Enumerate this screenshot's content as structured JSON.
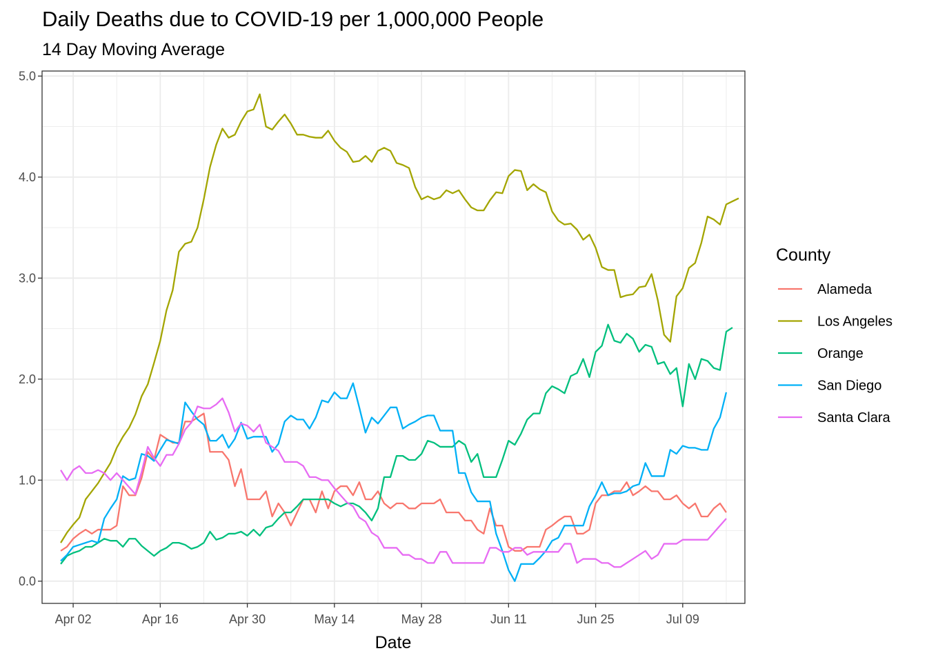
{
  "chart_data": {
    "type": "line",
    "title": "Daily Deaths due to COVID-19 per 1,000,000 People",
    "subtitle": "14 Day Moving Average",
    "xlabel": "Date",
    "ylabel": "",
    "x_start": "2020-03-31",
    "x_step_days": 1,
    "xlim": [
      "2020-03-28",
      "2020-07-19"
    ],
    "x_ticks": [
      {
        "date": "2020-04-02",
        "label": "Apr 02"
      },
      {
        "date": "2020-04-16",
        "label": "Apr 16"
      },
      {
        "date": "2020-04-30",
        "label": "Apr 30"
      },
      {
        "date": "2020-05-14",
        "label": "May 14"
      },
      {
        "date": "2020-05-28",
        "label": "May 28"
      },
      {
        "date": "2020-06-11",
        "label": "Jun 11"
      },
      {
        "date": "2020-06-25",
        "label": "Jun 25"
      },
      {
        "date": "2020-07-09",
        "label": "Jul 09"
      }
    ],
    "ylim": [
      -0.22,
      5.05
    ],
    "y_ticks": [
      {
        "value": 0,
        "label": "0.0"
      },
      {
        "value": 1,
        "label": "1.0"
      },
      {
        "value": 2,
        "label": "2.0"
      },
      {
        "value": 3,
        "label": "3.0"
      },
      {
        "value": 4,
        "label": "4.0"
      },
      {
        "value": 5,
        "label": "5.0"
      }
    ],
    "grid": true,
    "legend": {
      "title": "County",
      "position": "right"
    },
    "series": [
      {
        "name": "Alameda",
        "color": "#F8766D",
        "values": [
          0.3,
          0.34,
          0.42,
          0.47,
          0.51,
          0.47,
          0.51,
          0.51,
          0.51,
          0.55,
          0.94,
          0.85,
          0.85,
          1.02,
          1.28,
          1.2,
          1.45,
          1.41,
          1.37,
          1.37,
          1.58,
          1.58,
          1.62,
          1.66,
          1.28,
          1.28,
          1.28,
          1.2,
          0.94,
          1.11,
          0.81,
          0.81,
          0.81,
          0.89,
          0.64,
          0.77,
          0.68,
          0.55,
          0.68,
          0.81,
          0.81,
          0.68,
          0.89,
          0.72,
          0.89,
          0.94,
          0.94,
          0.85,
          0.98,
          0.81,
          0.81,
          0.89,
          0.77,
          0.72,
          0.77,
          0.77,
          0.72,
          0.72,
          0.77,
          0.77,
          0.77,
          0.81,
          0.68,
          0.68,
          0.68,
          0.6,
          0.6,
          0.51,
          0.47,
          0.72,
          0.55,
          0.55,
          0.34,
          0.3,
          0.3,
          0.34,
          0.34,
          0.34,
          0.51,
          0.55,
          0.6,
          0.64,
          0.64,
          0.47,
          0.47,
          0.51,
          0.77,
          0.85,
          0.85,
          0.89,
          0.89,
          0.98,
          0.85,
          0.89,
          0.94,
          0.89,
          0.89,
          0.81,
          0.81,
          0.85,
          0.77,
          0.72,
          0.77,
          0.64,
          0.64,
          0.72,
          0.77,
          0.68
        ]
      },
      {
        "name": "Los Angeles",
        "color": "#A3A500",
        "values": [
          0.38,
          0.48,
          0.56,
          0.63,
          0.81,
          0.89,
          0.97,
          1.07,
          1.17,
          1.32,
          1.43,
          1.52,
          1.65,
          1.83,
          1.95,
          2.16,
          2.38,
          2.68,
          2.88,
          3.26,
          3.34,
          3.36,
          3.5,
          3.78,
          4.1,
          4.32,
          4.48,
          4.39,
          4.42,
          4.55,
          4.65,
          4.67,
          4.82,
          4.5,
          4.47,
          4.55,
          4.62,
          4.53,
          4.42,
          4.42,
          4.4,
          4.39,
          4.39,
          4.46,
          4.36,
          4.29,
          4.25,
          4.15,
          4.16,
          4.21,
          4.15,
          4.26,
          4.29,
          4.26,
          4.14,
          4.12,
          4.09,
          3.9,
          3.78,
          3.81,
          3.78,
          3.8,
          3.87,
          3.84,
          3.87,
          3.78,
          3.7,
          3.67,
          3.67,
          3.77,
          3.85,
          3.84,
          4.01,
          4.07,
          4.06,
          3.87,
          3.93,
          3.88,
          3.85,
          3.66,
          3.57,
          3.53,
          3.54,
          3.48,
          3.38,
          3.43,
          3.3,
          3.11,
          3.08,
          3.08,
          2.81,
          2.83,
          2.84,
          2.91,
          2.92,
          3.04,
          2.78,
          2.44,
          2.37,
          2.82,
          2.9,
          3.1,
          3.15,
          3.35,
          3.61,
          3.58,
          3.53,
          3.73,
          3.76,
          3.79
        ]
      },
      {
        "name": "Orange",
        "color": "#00BF7D",
        "values": [
          0.17,
          0.25,
          0.28,
          0.3,
          0.34,
          0.34,
          0.38,
          0.42,
          0.4,
          0.4,
          0.34,
          0.42,
          0.42,
          0.35,
          0.3,
          0.25,
          0.3,
          0.33,
          0.38,
          0.38,
          0.36,
          0.32,
          0.34,
          0.38,
          0.49,
          0.41,
          0.43,
          0.47,
          0.47,
          0.49,
          0.45,
          0.51,
          0.45,
          0.53,
          0.55,
          0.62,
          0.68,
          0.68,
          0.74,
          0.81,
          0.81,
          0.81,
          0.81,
          0.81,
          0.77,
          0.74,
          0.77,
          0.77,
          0.74,
          0.68,
          0.6,
          0.72,
          1.03,
          1.03,
          1.24,
          1.24,
          1.2,
          1.2,
          1.26,
          1.39,
          1.37,
          1.33,
          1.33,
          1.33,
          1.39,
          1.35,
          1.18,
          1.26,
          1.03,
          1.03,
          1.03,
          1.2,
          1.39,
          1.35,
          1.46,
          1.6,
          1.66,
          1.66,
          1.86,
          1.93,
          1.9,
          1.86,
          2.03,
          2.06,
          2.2,
          2.02,
          2.27,
          2.33,
          2.54,
          2.38,
          2.36,
          2.45,
          2.4,
          2.27,
          2.34,
          2.32,
          2.15,
          2.17,
          2.05,
          2.11,
          1.73,
          2.15,
          2.0,
          2.2,
          2.18,
          2.11,
          2.09,
          2.47,
          2.51
        ]
      },
      {
        "name": "San Diego",
        "color": "#00B0F6",
        "values": [
          0.2,
          0.26,
          0.34,
          0.36,
          0.38,
          0.4,
          0.38,
          0.62,
          0.72,
          0.81,
          1.04,
          1.0,
          1.02,
          1.26,
          1.24,
          1.19,
          1.3,
          1.4,
          1.38,
          1.36,
          1.77,
          1.68,
          1.6,
          1.55,
          1.39,
          1.39,
          1.45,
          1.32,
          1.41,
          1.57,
          1.41,
          1.43,
          1.43,
          1.43,
          1.28,
          1.36,
          1.58,
          1.64,
          1.6,
          1.6,
          1.51,
          1.62,
          1.79,
          1.77,
          1.87,
          1.81,
          1.81,
          1.96,
          1.72,
          1.47,
          1.62,
          1.56,
          1.64,
          1.72,
          1.72,
          1.51,
          1.55,
          1.58,
          1.62,
          1.64,
          1.64,
          1.49,
          1.49,
          1.49,
          1.07,
          1.07,
          0.88,
          0.79,
          0.79,
          0.79,
          0.47,
          0.3,
          0.11,
          0.0,
          0.17,
          0.17,
          0.17,
          0.23,
          0.3,
          0.4,
          0.43,
          0.55,
          0.55,
          0.55,
          0.55,
          0.74,
          0.85,
          0.98,
          0.85,
          0.87,
          0.87,
          0.89,
          0.94,
          0.96,
          1.17,
          1.04,
          1.04,
          1.04,
          1.3,
          1.26,
          1.34,
          1.32,
          1.32,
          1.3,
          1.3,
          1.51,
          1.62,
          1.87
        ]
      },
      {
        "name": "Santa Clara",
        "color": "#E76BF3",
        "values": [
          1.1,
          1.0,
          1.1,
          1.14,
          1.07,
          1.07,
          1.1,
          1.07,
          1.0,
          1.07,
          1.0,
          0.93,
          0.86,
          1.08,
          1.33,
          1.22,
          1.14,
          1.25,
          1.25,
          1.36,
          1.5,
          1.57,
          1.73,
          1.71,
          1.71,
          1.75,
          1.81,
          1.67,
          1.48,
          1.56,
          1.54,
          1.48,
          1.55,
          1.37,
          1.33,
          1.29,
          1.18,
          1.18,
          1.18,
          1.14,
          1.03,
          1.03,
          1.0,
          1.0,
          0.92,
          0.85,
          0.78,
          0.74,
          0.63,
          0.59,
          0.48,
          0.44,
          0.33,
          0.33,
          0.33,
          0.26,
          0.26,
          0.22,
          0.22,
          0.18,
          0.18,
          0.29,
          0.29,
          0.18,
          0.18,
          0.18,
          0.18,
          0.18,
          0.18,
          0.33,
          0.33,
          0.29,
          0.29,
          0.33,
          0.33,
          0.26,
          0.29,
          0.29,
          0.29,
          0.29,
          0.29,
          0.37,
          0.37,
          0.18,
          0.22,
          0.22,
          0.22,
          0.18,
          0.18,
          0.14,
          0.14,
          0.18,
          0.22,
          0.26,
          0.3,
          0.22,
          0.26,
          0.37,
          0.37,
          0.37,
          0.41,
          0.41,
          0.41,
          0.41,
          0.41,
          0.48,
          0.55,
          0.62
        ]
      }
    ]
  }
}
